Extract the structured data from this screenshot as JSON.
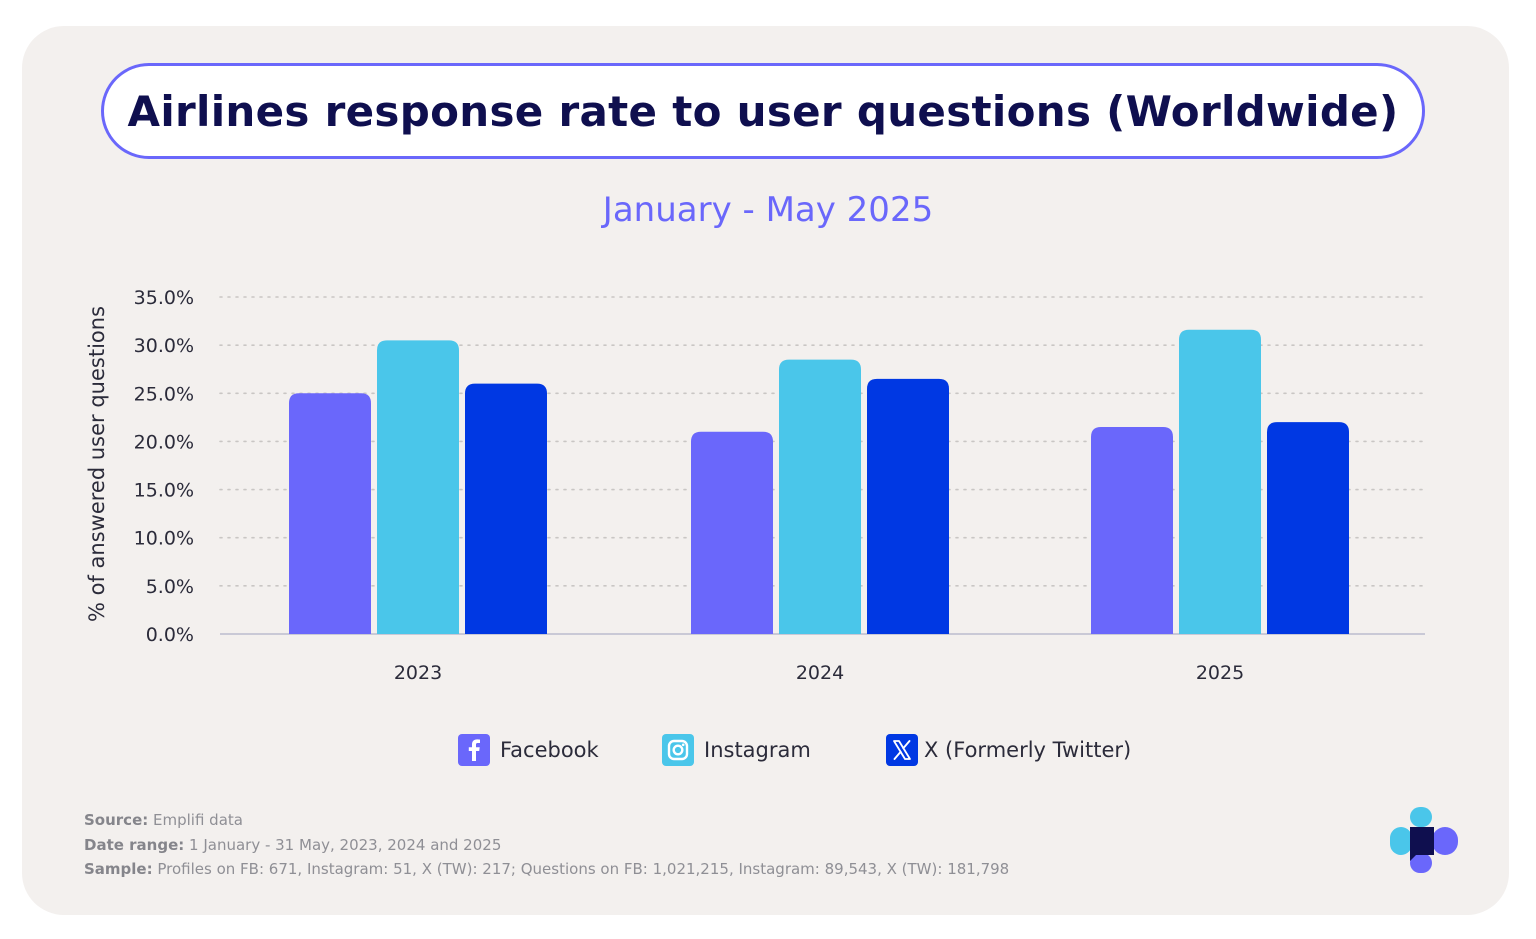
{
  "chart_data": {
    "type": "bar",
    "title": "Airlines response rate to user questions (Worldwide)",
    "subtitle": "January - May 2025",
    "ylabel": "% of answered user questions",
    "xlabel": "",
    "ylim": [
      0,
      35
    ],
    "ytick_step": 5,
    "yticks": [
      "0.0%",
      "5.0%",
      "10.0%",
      "15.0%",
      "20.0%",
      "25.0%",
      "30.0%",
      "35.0%"
    ],
    "grid": true,
    "legend_position": "bottom",
    "categories": [
      "2023",
      "2024",
      "2025"
    ],
    "series": [
      {
        "name": "Facebook",
        "color": "#6a67fb",
        "icon": "facebook-icon",
        "values": [
          25.0,
          21.0,
          21.5
        ]
      },
      {
        "name": "Instagram",
        "color": "#4ac6ea",
        "icon": "instagram-icon",
        "values": [
          30.5,
          28.5,
          31.6
        ]
      },
      {
        "name": "X (Formerly Twitter)",
        "color": "#0038e3",
        "icon": "x-twitter-icon",
        "values": [
          26.0,
          26.5,
          22.0
        ]
      }
    ]
  },
  "notes": {
    "source_label": "Source:",
    "source_value": " Emplifi data",
    "date_label": "Date range:",
    "date_value": " 1 January - 31 May, 2023, 2024 and 2025",
    "sample_label": "Sample:",
    "sample_value": " Profiles on FB: 671, Instagram: 51, X (TW): 217; Questions on FB: 1,021,215, Instagram: 89,543, X (TW): 181,798"
  },
  "colors": {
    "accent": "#6a67fb",
    "title_text": "#0f0f4f",
    "card_bg": "#f3f0ee"
  }
}
